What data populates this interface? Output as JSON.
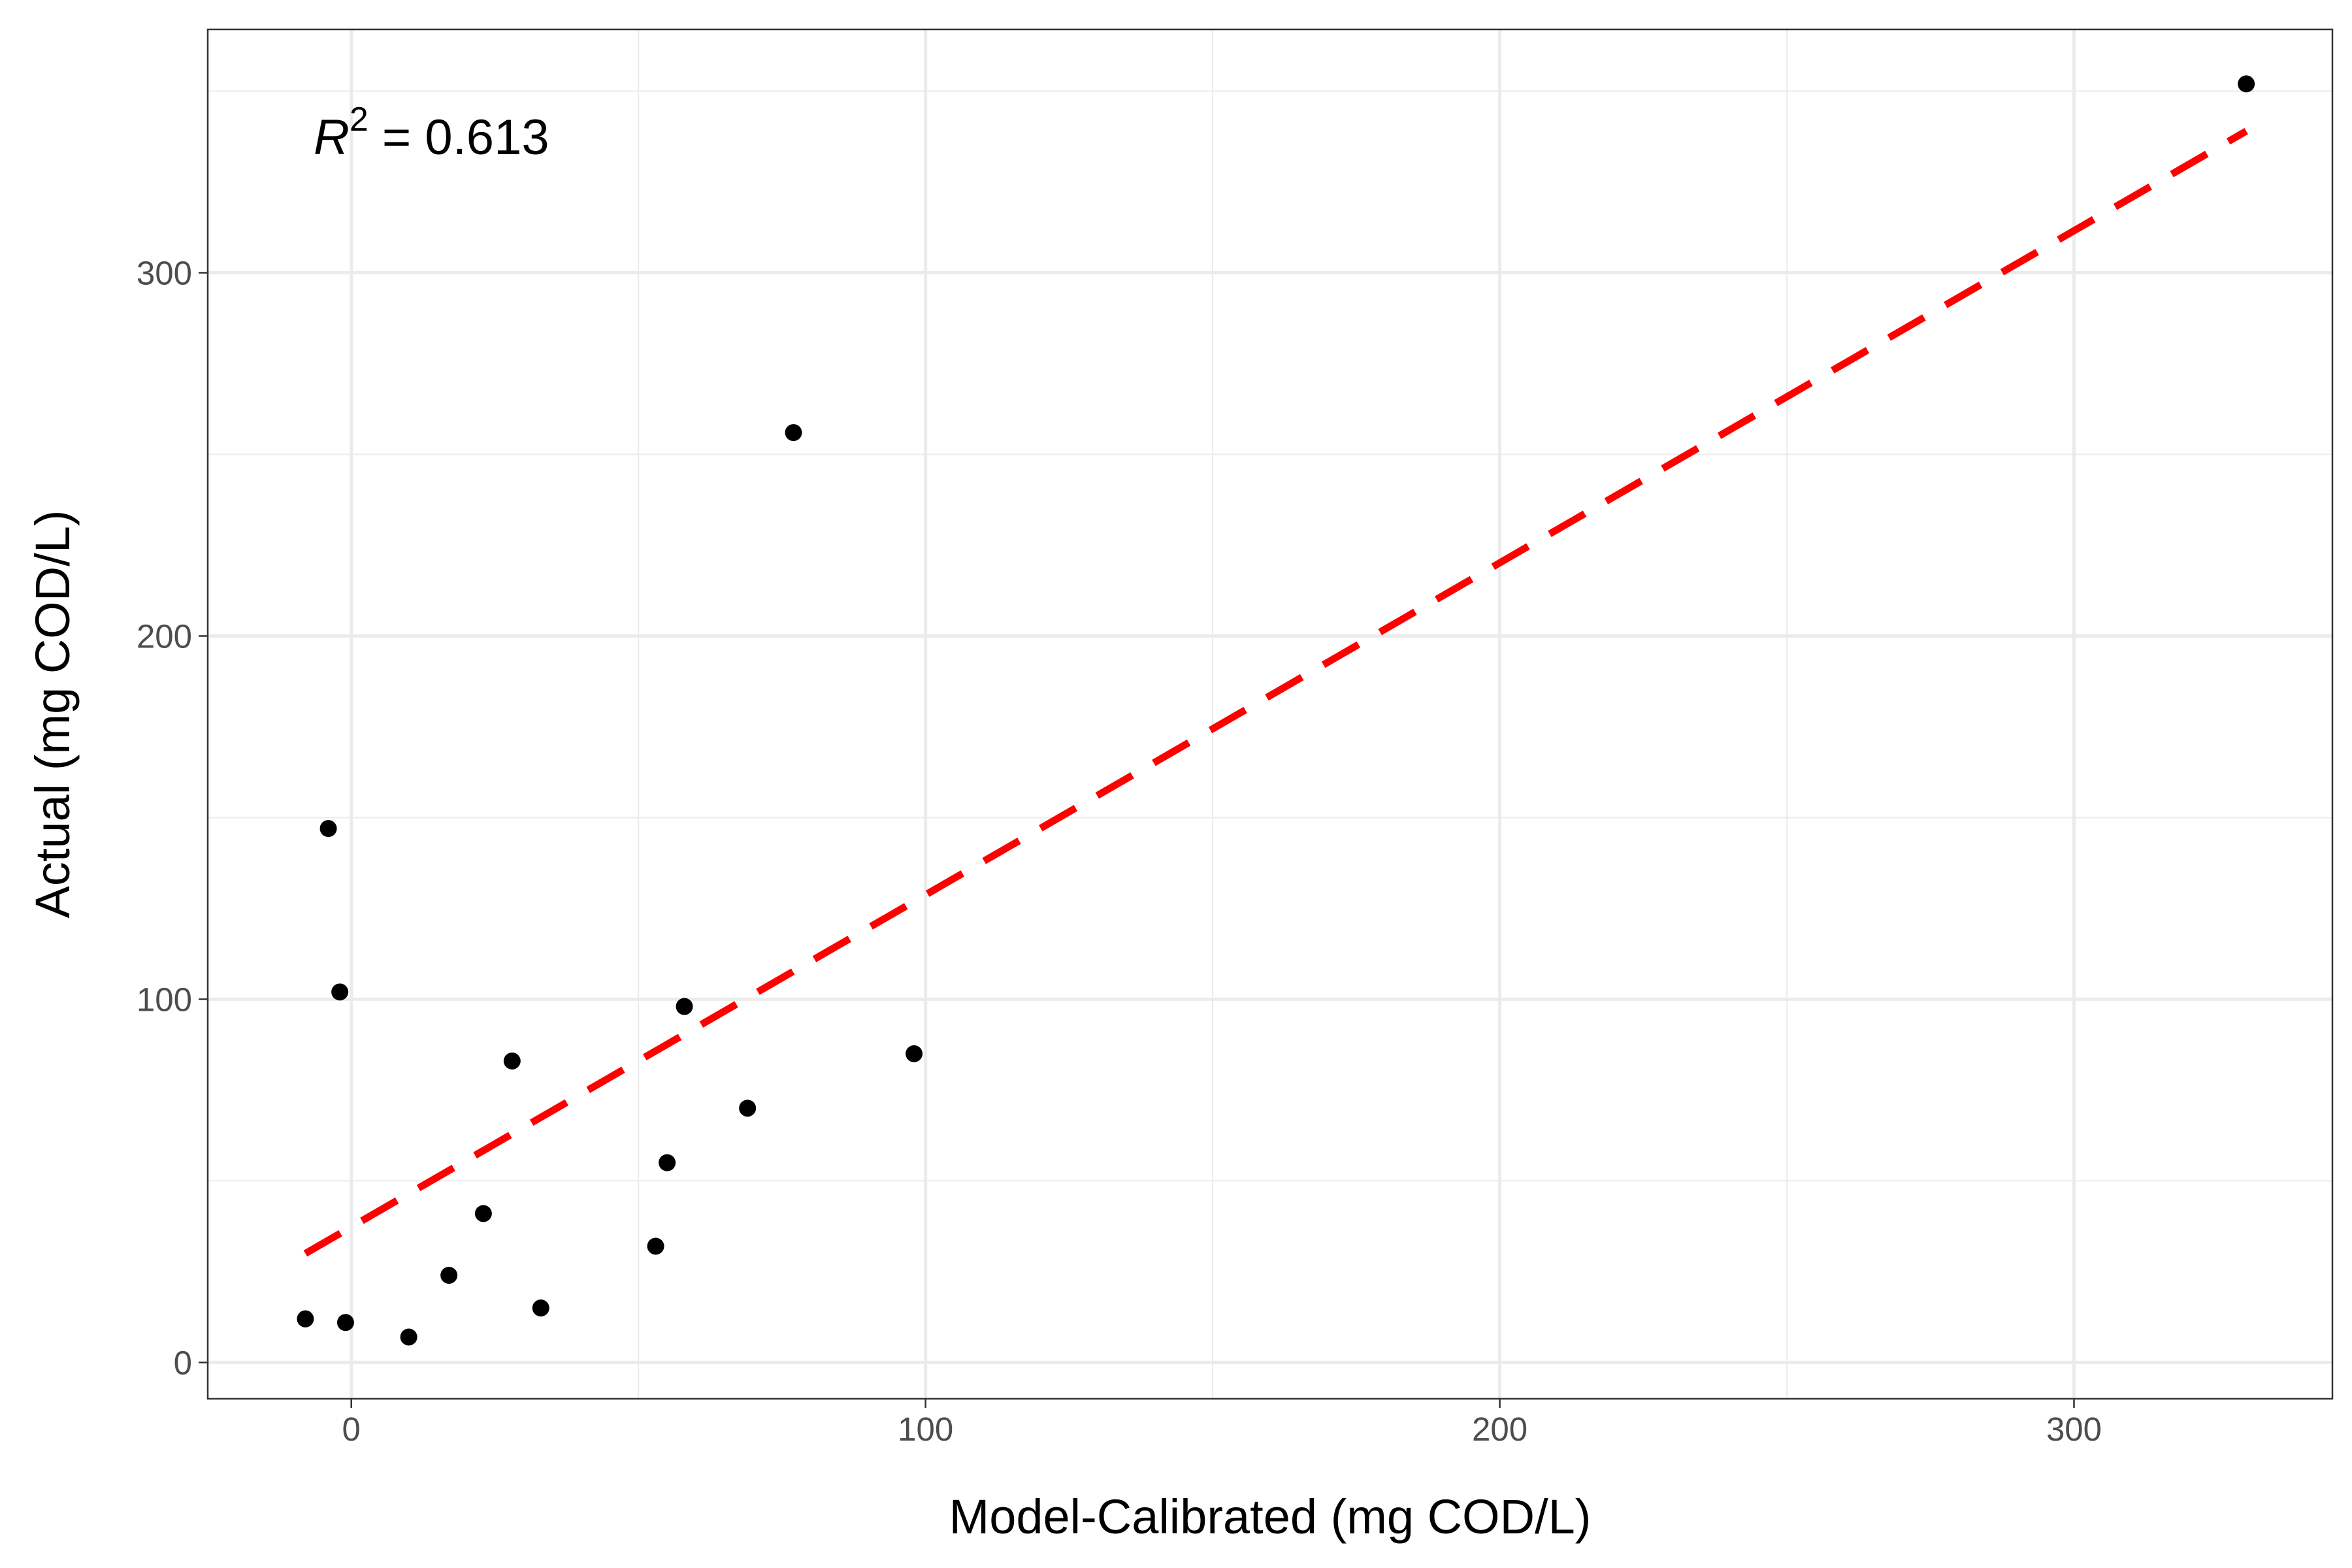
{
  "chart_data": {
    "type": "scatter",
    "title": "",
    "xlabel": "Model-Calibrated (mg COD/L)",
    "ylabel": "Actual (mg COD/L)",
    "xlim": [
      -25,
      345
    ],
    "ylim": [
      -10,
      367
    ],
    "x_ticks": [
      0,
      100,
      200,
      300
    ],
    "y_ticks": [
      0,
      100,
      200,
      300
    ],
    "x_tick_labels": [
      "0",
      "100",
      "200",
      "300"
    ],
    "y_tick_labels": [
      "0",
      "100",
      "200",
      "300"
    ],
    "grid": true,
    "legend": "none",
    "annotation": {
      "r_symbol": "R",
      "superscript": "2",
      "text": " = 0.613"
    },
    "points": [
      {
        "x": -8,
        "y": 12
      },
      {
        "x": -4,
        "y": 147
      },
      {
        "x": -2,
        "y": 102
      },
      {
        "x": -1,
        "y": 11
      },
      {
        "x": 10,
        "y": 7
      },
      {
        "x": 17,
        "y": 24
      },
      {
        "x": 23,
        "y": 41
      },
      {
        "x": 28,
        "y": 83
      },
      {
        "x": 33,
        "y": 15
      },
      {
        "x": 53,
        "y": 32
      },
      {
        "x": 55,
        "y": 55
      },
      {
        "x": 58,
        "y": 98
      },
      {
        "x": 69,
        "y": 70
      },
      {
        "x": 77,
        "y": 256
      },
      {
        "x": 98,
        "y": 85
      },
      {
        "x": 330,
        "y": 352
      }
    ],
    "fit_line": {
      "x": [
        -8,
        330
      ],
      "y": [
        30,
        339
      ],
      "style": "dashed"
    },
    "colors": {
      "points": "#000000",
      "fit_line": "#ff0000",
      "grid": "#ebebeb",
      "border": "#333333"
    }
  }
}
